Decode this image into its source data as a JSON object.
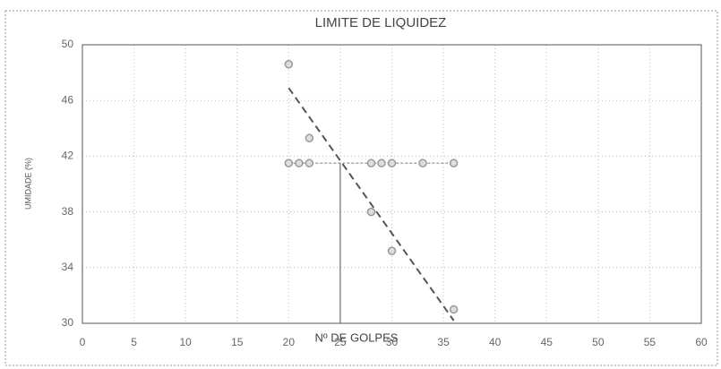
{
  "chart_data": {
    "type": "scatter",
    "title": "LIMITE DE LIQUIDEZ",
    "x_label": "Nº DE GOLPES",
    "y_label": "UMIDADE (%)",
    "xlim": [
      0,
      60
    ],
    "ylim": [
      30,
      50
    ],
    "xticks": [
      0,
      5,
      10,
      15,
      20,
      25,
      30,
      35,
      40,
      45,
      50,
      55,
      60
    ],
    "yticks": [
      30,
      34,
      38,
      42,
      46,
      50
    ],
    "grid": true,
    "series": [
      {
        "color": "#999999",
        "x": [
          20,
          22,
          28,
          30,
          36
        ],
        "values": [
          48.6,
          43.3,
          38.0,
          35.2,
          31.0
        ]
      },
      {
        "color": "#999999",
        "x": [
          20,
          21,
          22,
          28,
          29,
          30,
          33,
          36
        ],
        "values": [
          41.5,
          41.5,
          41.5,
          41.5,
          41.5,
          41.5,
          41.5,
          41.5
        ]
      }
    ],
    "trend_line": {
      "color": "#555555",
      "x": [
        20,
        36
      ],
      "values": [
        46.9,
        30.2
      ]
    },
    "liquid_limit": {
      "x": 25,
      "value": 41.5
    }
  }
}
